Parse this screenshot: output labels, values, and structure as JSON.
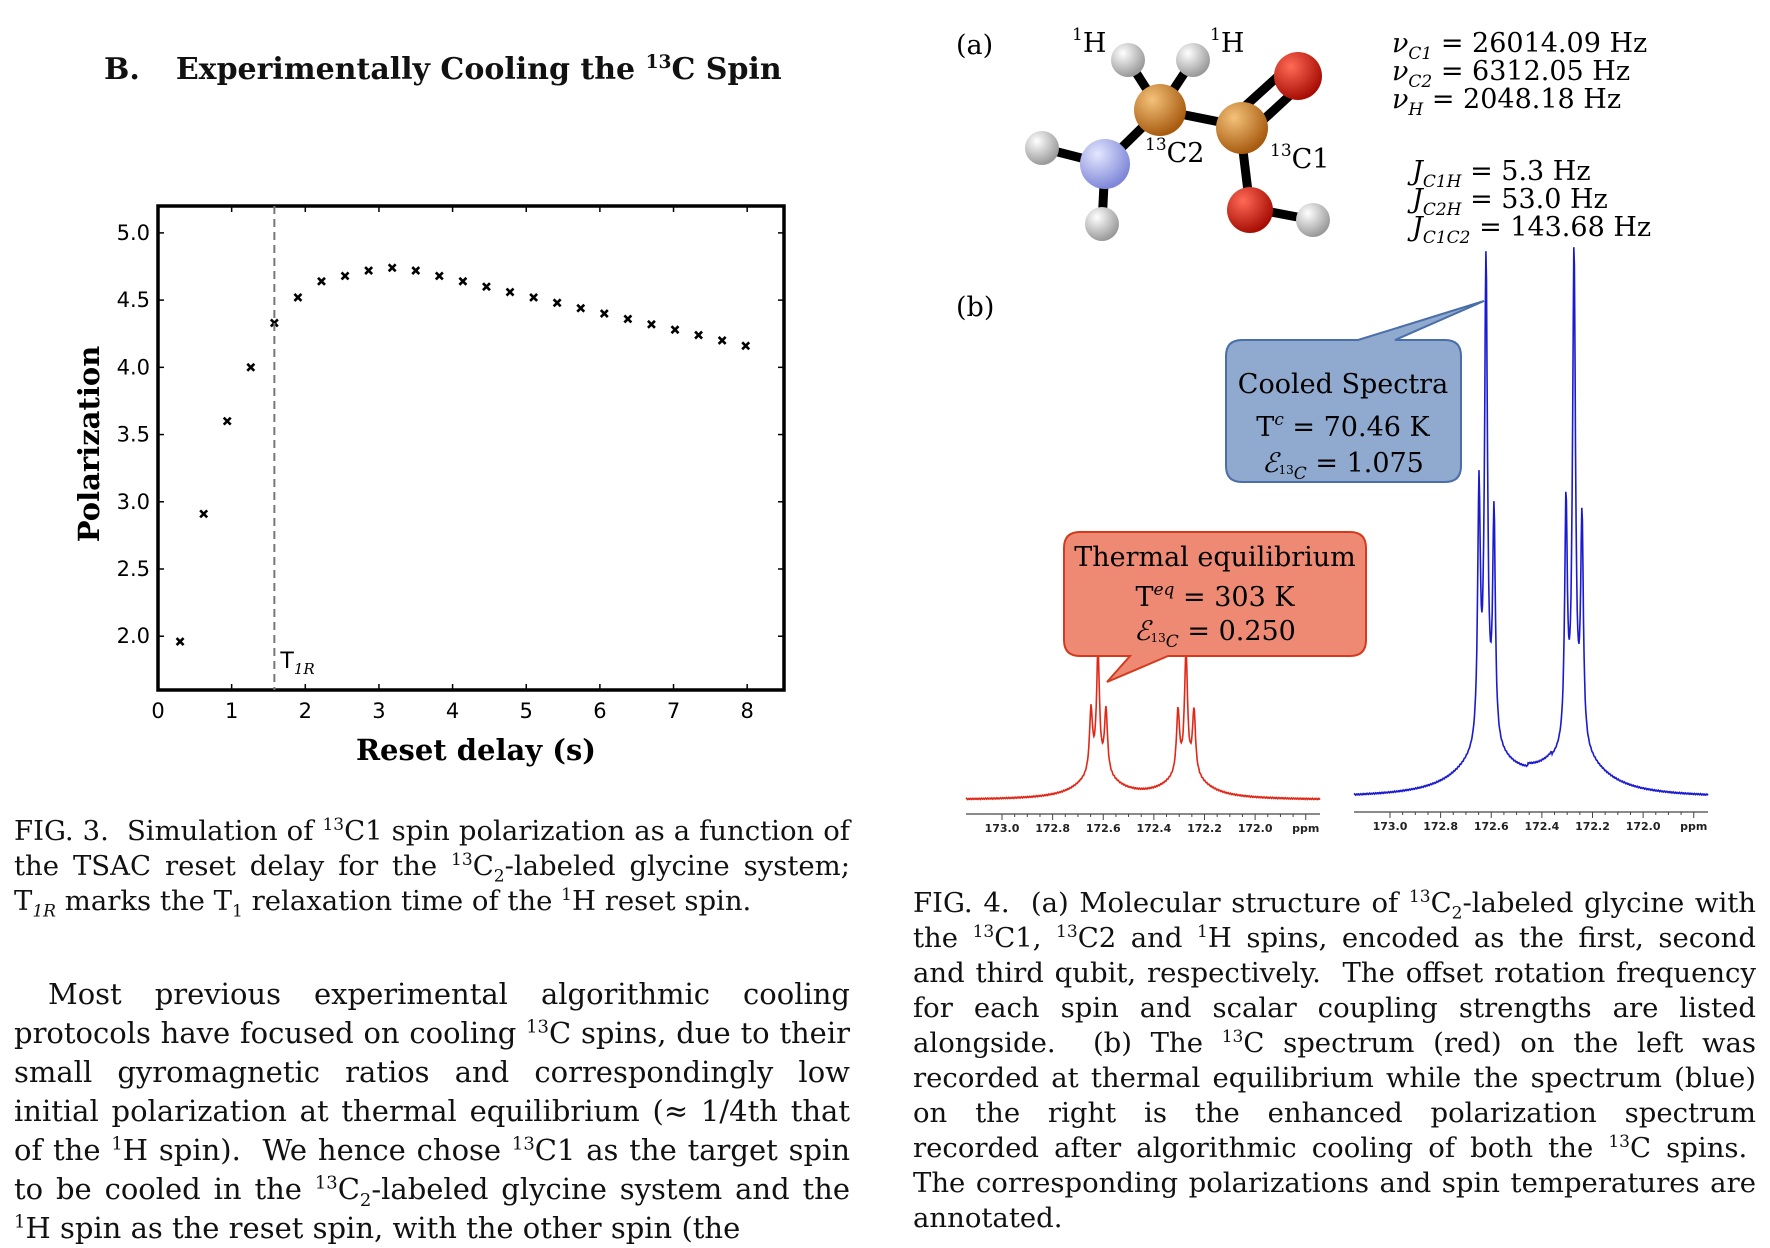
{
  "section": {
    "number": "B.",
    "title_pre": "Experimentally Cooling the ",
    "title_sup": "13",
    "title_post": "C Spin"
  },
  "fig3": {
    "chart_data": {
      "type": "scatter",
      "title": "",
      "xlabel": "Reset delay (s)",
      "ylabel": "Polarization",
      "xlim": [
        0,
        8.5
      ],
      "ylim": [
        1.6,
        5.2
      ],
      "xticks": [
        "0",
        "1",
        "2",
        "3",
        "4",
        "5",
        "6",
        "7",
        "8"
      ],
      "yticks": [
        "2.0",
        "2.5",
        "3.0",
        "3.5",
        "4.0",
        "4.5",
        "5.0"
      ],
      "grid": false,
      "marker": "x",
      "points": [
        {
          "x": 0.3,
          "y": 1.96
        },
        {
          "x": 0.62,
          "y": 2.91
        },
        {
          "x": 0.94,
          "y": 3.6
        },
        {
          "x": 1.26,
          "y": 4.0
        },
        {
          "x": 1.58,
          "y": 4.33
        },
        {
          "x": 1.9,
          "y": 4.52
        },
        {
          "x": 2.22,
          "y": 4.64
        },
        {
          "x": 2.54,
          "y": 4.68
        },
        {
          "x": 2.86,
          "y": 4.72
        },
        {
          "x": 3.18,
          "y": 4.74
        },
        {
          "x": 3.5,
          "y": 4.72
        },
        {
          "x": 3.82,
          "y": 4.68
        },
        {
          "x": 4.14,
          "y": 4.64
        },
        {
          "x": 4.46,
          "y": 4.6
        },
        {
          "x": 4.78,
          "y": 4.56
        },
        {
          "x": 5.1,
          "y": 4.52
        },
        {
          "x": 5.42,
          "y": 4.48
        },
        {
          "x": 5.74,
          "y": 4.44
        },
        {
          "x": 6.06,
          "y": 4.4
        },
        {
          "x": 6.38,
          "y": 4.36
        },
        {
          "x": 6.7,
          "y": 4.32
        },
        {
          "x": 7.02,
          "y": 4.28
        },
        {
          "x": 7.34,
          "y": 4.24
        },
        {
          "x": 7.66,
          "y": 4.2
        },
        {
          "x": 7.98,
          "y": 4.16
        }
      ],
      "vline": {
        "x": 1.58,
        "label_main": "T",
        "label_sub": "1R",
        "style": "dashed",
        "color": "#777777"
      }
    },
    "caption_html": "FIG. 3.&nbsp; Simulation of <sup>13</sup>C1 spin polarization as a function of the TSAC reset delay for the <sup>13</sup>C<sub>2</sub>-labeled glycine system; T<sub><i>1R</i></sub> marks the T<sub>1</sub> relaxation time of the <sup>1</sup>H reset spin."
  },
  "body_html": "Most previous experimental algorithmic cooling protocols have focused on cooling <sup>13</sup>C spins, due to their small gyromagnetic ratios and correspondingly low initial polarization at thermal equilibrium (&asymp; 1/4th that of the <sup>1</sup>H spin).&nbsp; We hence chose <sup>13</sup>C1 as the target spin to be cooled in the <sup>13</sup>C<sub>2</sub>-labeled glycine system and the <sup>1</sup>H spin as the reset spin, with the other spin (the",
  "fig4": {
    "panel_a_label": "(a)",
    "panel_b_label": "(b)",
    "molecule": {
      "atom_labels": {
        "h1": "1",
        "h1b": "H",
        "h2": "1",
        "h2b": "H",
        "c2": "13",
        "c2b": "C2",
        "c1": "13",
        "c1b": "C1"
      },
      "colors": {
        "carbon": "#c97a22",
        "oxygen": "#cc1a10",
        "nitrogen": "#9aa2e6",
        "hydrogen": "#d6d6d6"
      }
    },
    "frequencies": [
      {
        "sym": "ν",
        "sub": "C1",
        "value": " = 26014.09 Hz"
      },
      {
        "sym": "ν",
        "sub": "C2",
        "value": " = 6312.05 Hz"
      },
      {
        "sym": "ν",
        "sub": "H",
        "value": " = 2048.18 Hz"
      }
    ],
    "couplings": [
      {
        "sym": "J",
        "sub": "C1H",
        "value": " = 5.3 Hz"
      },
      {
        "sym": "J",
        "sub": "C2H",
        "value": " = 53.0 Hz"
      },
      {
        "sym": "J",
        "sub": "C1C2",
        "value": " = 143.68 Hz"
      }
    ],
    "callout_cooled": {
      "line1": "Cooled Spectra",
      "t_sym": "T",
      "t_sup": "c",
      "t_val": " = 70.46 K",
      "e_sym": "ℰ",
      "e_sub": "13",
      "e_subc": "C",
      "e_val": " = 1.075",
      "fill": "#8fa9cf",
      "stroke": "#4a6ea8"
    },
    "callout_thermal": {
      "line1": "Thermal equilibrium",
      "t_sym": "T",
      "t_sup": "eq",
      "t_val": " = 303 K",
      "e_sym": "ℰ",
      "e_sub": "13",
      "e_subc": "C",
      "e_val": " = 0.250",
      "fill": "#ee8a74",
      "stroke": "#d43b1e"
    },
    "spectra": {
      "red_color": "#e02818",
      "blue_color": "#1a1ad0",
      "ticks": [
        "173.0",
        "172.8",
        "172.6",
        "172.4",
        "172.2",
        "172.0",
        "ppm"
      ]
    },
    "caption_html": "FIG. 4.&nbsp; (a) Molecular structure of <sup>13</sup>C<sub>2</sub>-labeled glycine with the <sup>13</sup>C1, <sup>13</sup>C2 and <sup>1</sup>H spins, encoded as the first, second and third qubit, respectively.&nbsp; The offset rotation frequency for each spin and scalar coupling strengths are listed alongside.&nbsp; (b) The <sup>13</sup>C spectrum (red) on the left was recorded at thermal equilibrium while the spectrum (blue) on the right is the enhanced polarization spectrum recorded after algorithmic cooling of both the <sup>13</sup>C spins.&nbsp; The corresponding polarizations and spin temperatures are annotated."
  }
}
